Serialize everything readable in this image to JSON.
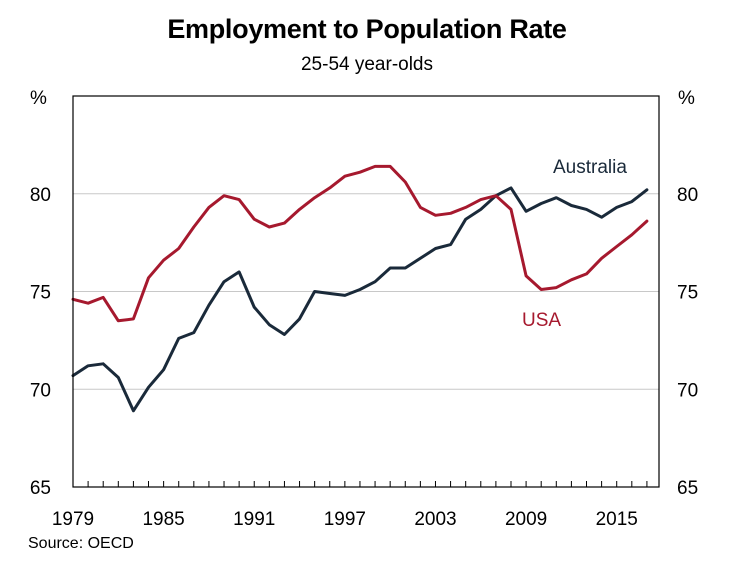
{
  "chart_data": {
    "type": "line",
    "title": "Employment to Population Rate",
    "subtitle": "25-54 year-olds",
    "y_unit_left": "%",
    "y_unit_right": "%",
    "ylim": [
      65,
      85
    ],
    "yticks": [
      65,
      70,
      75,
      80
    ],
    "xlim": [
      1979,
      2017.8
    ],
    "xticks": [
      "1979",
      "1985",
      "1991",
      "1997",
      "2003",
      "2009",
      "2015"
    ],
    "grid": true,
    "source": "Source: OECD",
    "series": [
      {
        "name": "Australia",
        "color": "#1a2a3a",
        "x": [
          1979,
          1980,
          1981,
          1982,
          1983,
          1984,
          1985,
          1986,
          1987,
          1988,
          1989,
          1990,
          1991,
          1992,
          1993,
          1994,
          1995,
          1996,
          1997,
          1998,
          1999,
          2000,
          2001,
          2002,
          2003,
          2004,
          2005,
          2006,
          2007,
          2008,
          2009,
          2010,
          2011,
          2012,
          2013,
          2014,
          2015,
          2016,
          2017
        ],
        "values": [
          70.7,
          71.2,
          71.3,
          70.6,
          68.9,
          70.1,
          71.0,
          72.6,
          72.9,
          74.3,
          75.5,
          76.0,
          74.2,
          73.3,
          72.8,
          73.6,
          75.0,
          74.9,
          74.8,
          75.1,
          75.5,
          76.2,
          76.2,
          76.7,
          77.2,
          77.4,
          78.7,
          79.2,
          79.9,
          80.3,
          79.1,
          79.5,
          79.8,
          79.4,
          79.2,
          78.8,
          79.3,
          79.6,
          80.2
        ]
      },
      {
        "name": "USA",
        "color": "#a6192e",
        "x": [
          1979,
          1980,
          1981,
          1982,
          1983,
          1984,
          1985,
          1986,
          1987,
          1988,
          1989,
          1990,
          1991,
          1992,
          1993,
          1994,
          1995,
          1996,
          1997,
          1998,
          1999,
          2000,
          2001,
          2002,
          2003,
          2004,
          2005,
          2006,
          2007,
          2008,
          2009,
          2010,
          2011,
          2012,
          2013,
          2014,
          2015,
          2016,
          2017
        ],
        "values": [
          74.6,
          74.4,
          74.7,
          73.5,
          73.6,
          75.7,
          76.6,
          77.2,
          78.3,
          79.3,
          79.9,
          79.7,
          78.7,
          78.3,
          78.5,
          79.2,
          79.8,
          80.3,
          80.9,
          81.1,
          81.4,
          81.4,
          80.6,
          79.3,
          78.9,
          79.0,
          79.3,
          79.7,
          79.9,
          79.2,
          75.8,
          75.1,
          75.2,
          75.6,
          75.9,
          76.7,
          77.3,
          77.9,
          78.6
        ]
      }
    ]
  }
}
